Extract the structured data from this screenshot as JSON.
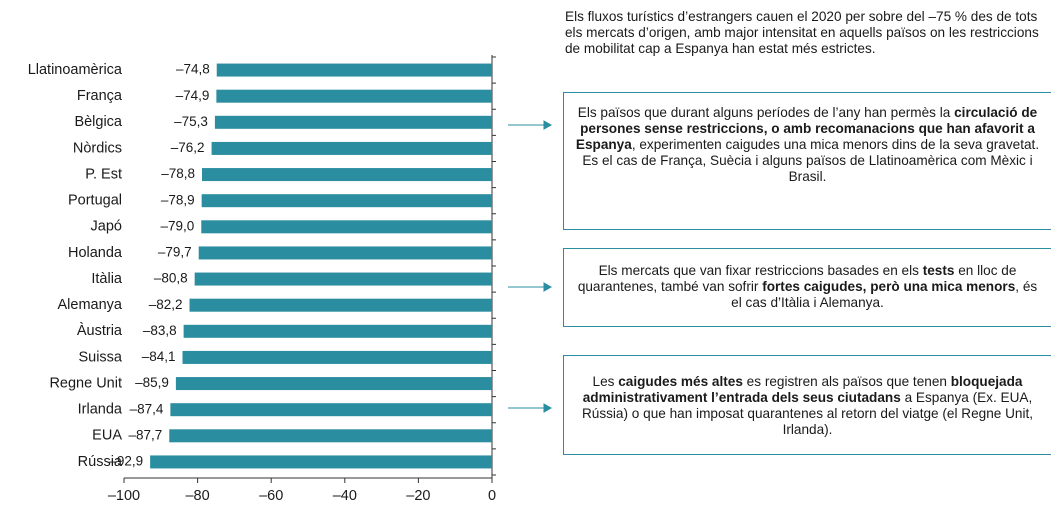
{
  "chart_data": {
    "type": "bar",
    "orientation": "horizontal",
    "categories": [
      "Llatinoamèrica",
      "França",
      "Bèlgica",
      "Nòrdics",
      "P. Est",
      "Portugal",
      "Japó",
      "Holanda",
      "Itàlia",
      "Alemanya",
      "Àustria",
      "Suissa",
      "Regne Unit",
      "Irlanda",
      "EUA",
      "Rússia"
    ],
    "values": [
      -74.8,
      -74.9,
      -75.3,
      -76.2,
      -78.8,
      -78.9,
      -79.0,
      -79.7,
      -80.8,
      -82.2,
      -83.8,
      -84.1,
      -85.9,
      -87.4,
      -87.7,
      -92.9
    ],
    "value_labels": [
      "–74,8",
      "–74,9",
      "–75,3",
      "–76,2",
      "–78,8",
      "–78,9",
      "–79,0",
      "–79,7",
      "–80,8",
      "–82,2",
      "–83,8",
      "–84,1",
      "–85,9",
      "–87,4",
      "–87,7",
      "–92,9"
    ],
    "color": "#2a8da0",
    "xlim": [
      -100,
      0
    ],
    "xticks": [
      {
        "value": -100,
        "label": "–100"
      },
      {
        "value": -80,
        "label": "–80"
      },
      {
        "value": -60,
        "label": "–60"
      },
      {
        "value": -40,
        "label": "–40"
      },
      {
        "value": -20,
        "label": "–20"
      },
      0
    ],
    "grid": false,
    "annotations": {
      "intro": "Els fluxos turístics d’estrangers cauen el 2020 per sobre del –75 % des de tots els mercats d’origen, amb major intensitat en aquells països on les restriccions de mobilitat cap a Espanya han estat més estrictes.",
      "boxes": [
        {
          "runs": [
            {
              "text": "Els països que durant alguns períodes de l’any han permès la ",
              "bold": false
            },
            {
              "text": "circulació de persones sense restriccions, o amb recomanacions que han afavorit a Espanya",
              "bold": true
            },
            {
              "text": ", experimenten caigudes una mica menors dins de la seva gravetat. Es el cas de França, Suècia i alguns països de Llatinoamèrica com Mèxic i Brasil.",
              "bold": false
            }
          ]
        },
        {
          "runs": [
            {
              "text": "Els mercats que van fixar restriccions basades en els ",
              "bold": false
            },
            {
              "text": "tests",
              "bold": true
            },
            {
              "text": " en lloc de quarantenes, també van sofrir ",
              "bold": false
            },
            {
              "text": "fortes caigudes, però una mica menors",
              "bold": true
            },
            {
              "text": ", és el cas d’Itàlia i Alemanya.",
              "bold": false
            }
          ]
        },
        {
          "runs": [
            {
              "text": "Les ",
              "bold": false
            },
            {
              "text": "caigudes més altes",
              "bold": true
            },
            {
              "text": " es registren als països que tenen ",
              "bold": false
            },
            {
              "text": "bloquejada administrativament l’entrada dels seus ciutadans",
              "bold": true
            },
            {
              "text": " a Espanya (Ex. EUA, Rússia) o que han imposat quarantenes al retorn del viatge (el Regne Unit, Irlanda).",
              "bold": false
            }
          ]
        }
      ]
    }
  }
}
